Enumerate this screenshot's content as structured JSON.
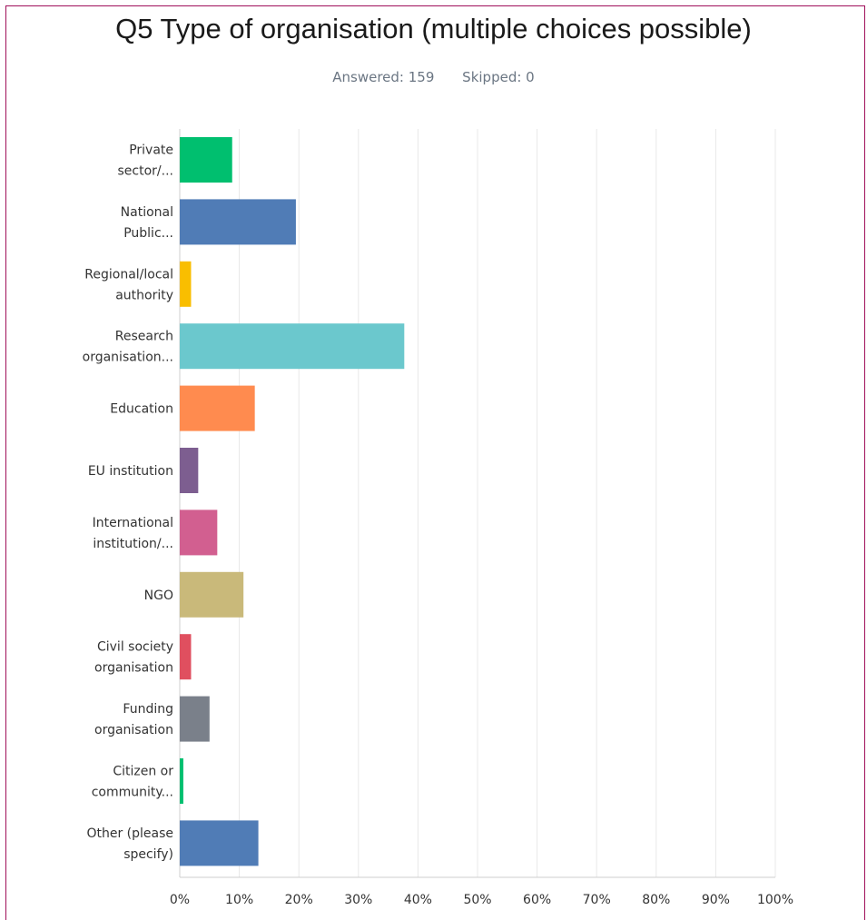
{
  "chart_data": {
    "type": "bar",
    "orientation": "horizontal",
    "title": "Q5 Type of organisation (multiple choices possible)",
    "answered_label": "Answered: 159",
    "skipped_label": "Skipped: 0",
    "categories": [
      [
        "Private",
        "sector/..."
      ],
      [
        "National",
        "Public..."
      ],
      [
        "Regional/local",
        "authority"
      ],
      [
        "Research",
        "organisation..."
      ],
      [
        "Education"
      ],
      [
        "EU institution"
      ],
      [
        "International",
        "institution/..."
      ],
      [
        "NGO"
      ],
      [
        "Civil society",
        "organisation"
      ],
      [
        "Funding",
        "organisation"
      ],
      [
        "Citizen or",
        "community..."
      ],
      [
        "Other (please",
        "specify)"
      ]
    ],
    "values": [
      8.8,
      19.5,
      1.9,
      37.7,
      12.6,
      3.1,
      6.3,
      10.7,
      1.9,
      5.0,
      0.6,
      13.2
    ],
    "unit": "%",
    "colors": [
      "#00bf6f",
      "#507cb6",
      "#f9be00",
      "#6bc8cd",
      "#ff8b4f",
      "#7d5e90",
      "#d25f90",
      "#c9b97a",
      "#e04f5f",
      "#7a808a",
      "#00bf6f",
      "#507cb6"
    ],
    "xlim": [
      0,
      100
    ],
    "xticks": [
      0,
      10,
      20,
      30,
      40,
      50,
      60,
      70,
      80,
      90,
      100
    ],
    "xtick_labels": [
      "0%",
      "10%",
      "20%",
      "30%",
      "40%",
      "50%",
      "60%",
      "70%",
      "80%",
      "90%",
      "100%"
    ],
    "grid": true,
    "gridline_color": "#e8e8e8",
    "axis_color": "#cfcfcf"
  }
}
